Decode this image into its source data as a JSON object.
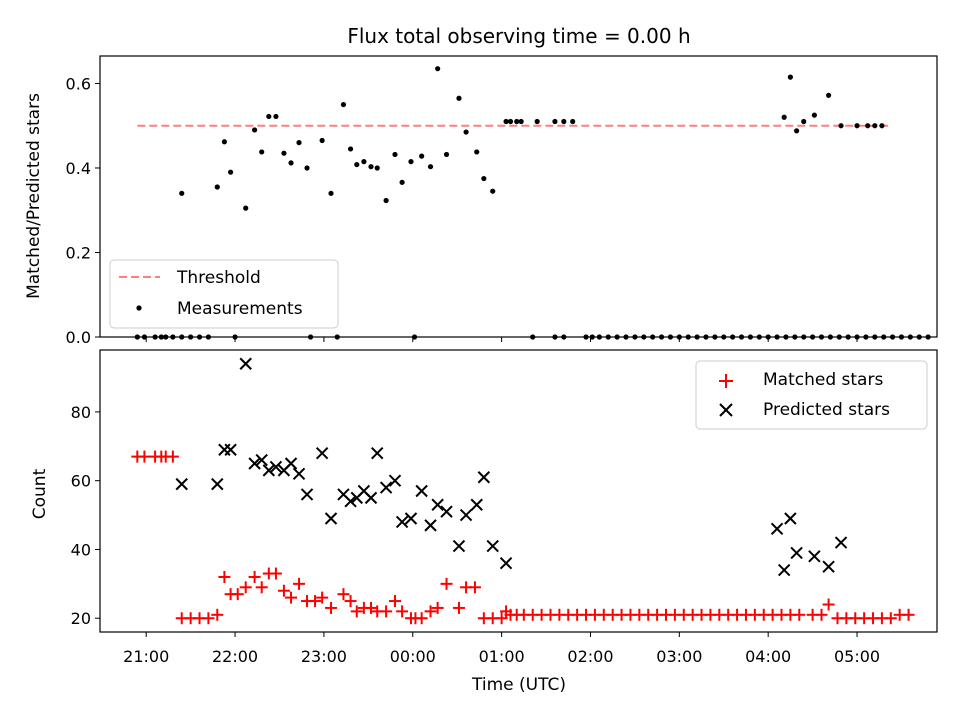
{
  "chart_data": [
    {
      "type": "scatter",
      "title": "Flux total observing time = 0.00 h",
      "xlabel": "",
      "ylabel": "Matched/Predicted stars",
      "xlim_hours_since_2100": [
        -0.52,
        8.9
      ],
      "ylim": [
        0,
        0.665
      ],
      "y_ticks": [
        "0.0",
        "0.2",
        "0.4",
        "0.6"
      ],
      "y_tick_values": [
        0,
        0.2,
        0.4,
        0.6
      ],
      "grid": false,
      "legend": {
        "position": "lower-left",
        "entries": [
          "Threshold",
          "Measurements"
        ]
      },
      "threshold": {
        "name": "Threshold",
        "value": 0.5,
        "x_start": -0.1,
        "x_end": 8.35,
        "color": "#ff7f7f",
        "style": "dashed"
      },
      "series": [
        {
          "name": "Measurements",
          "color": "#000000",
          "x": [
            -0.1,
            -0.02,
            0.1,
            0.17,
            0.22,
            0.3,
            0.4,
            0.5,
            0.6,
            0.7,
            1.0,
            1.85,
            2.15,
            3.02,
            4.35,
            4.6,
            4.7,
            0.4,
            0.8,
            0.88,
            0.95,
            1.12,
            1.22,
            1.3,
            1.38,
            1.46,
            1.55,
            1.63,
            1.72,
            1.81,
            1.98,
            2.08,
            2.22,
            2.3,
            2.37,
            2.45,
            2.53,
            2.6,
            2.7,
            2.8,
            2.88,
            2.98,
            3.1,
            3.2,
            3.28,
            3.38,
            3.52,
            3.6,
            3.72,
            3.8,
            3.9,
            4.05,
            4.1,
            4.17,
            4.22,
            4.4,
            4.6,
            4.7,
            4.8,
            4.95,
            5.02,
            5.1,
            5.2,
            5.3,
            5.4,
            5.5,
            5.6,
            5.7,
            5.8,
            5.9,
            6.0,
            6.1,
            6.2,
            6.3,
            6.4,
            6.5,
            6.6,
            6.7,
            6.8,
            6.9,
            7.0,
            7.1,
            7.2,
            7.3,
            7.4,
            7.5,
            7.6,
            7.7,
            7.8,
            7.9,
            8.0,
            8.1,
            8.2,
            8.3,
            8.4,
            8.5,
            8.6,
            8.7,
            8.8,
            7.18,
            7.25,
            7.32,
            7.4,
            7.52,
            7.68,
            7.82,
            8.0,
            8.12,
            8.2,
            8.28
          ],
          "y": [
            0,
            0,
            0,
            0,
            0,
            0,
            0,
            0,
            0,
            0,
            0,
            0,
            0,
            0,
            0,
            0,
            0,
            0.34,
            0.355,
            0.462,
            0.39,
            0.305,
            0.49,
            0.438,
            0.522,
            0.522,
            0.435,
            0.412,
            0.46,
            0.4,
            0.465,
            0.34,
            0.55,
            0.445,
            0.408,
            0.415,
            0.403,
            0.4,
            0.323,
            0.432,
            0.366,
            0.415,
            0.428,
            0.403,
            0.635,
            0.432,
            0.565,
            0.485,
            0.438,
            0.375,
            0.345,
            0.51,
            0.51,
            0.51,
            0.51,
            0.51,
            0.51,
            0.51,
            0.51,
            0,
            0,
            0,
            0,
            0,
            0,
            0,
            0,
            0,
            0,
            0,
            0,
            0,
            0,
            0,
            0,
            0,
            0,
            0,
            0,
            0,
            0,
            0,
            0,
            0,
            0,
            0,
            0,
            0,
            0,
            0,
            0,
            0,
            0,
            0,
            0,
            0,
            0,
            0,
            0,
            0.52,
            0.615,
            0.488,
            0.51,
            0.525,
            0.572,
            0.5,
            0.5,
            0.5,
            0.5,
            0.5
          ]
        }
      ]
    },
    {
      "type": "scatter",
      "title": "",
      "xlabel": "Time (UTC)",
      "ylabel": "Count",
      "xlim_hours_since_2100": [
        -0.52,
        8.9
      ],
      "ylim": [
        16,
        98
      ],
      "x_ticks": [
        "21:00",
        "22:00",
        "23:00",
        "00:00",
        "01:00",
        "02:00",
        "03:00",
        "04:00",
        "05:00"
      ],
      "x_tick_values": [
        0,
        1,
        2,
        3,
        4,
        5,
        6,
        7,
        8
      ],
      "y_ticks": [
        "20",
        "40",
        "60",
        "80"
      ],
      "y_tick_values": [
        20,
        40,
        60,
        80
      ],
      "grid": false,
      "legend": {
        "position": "top-right",
        "entries": [
          "Matched stars",
          "Predicted stars"
        ]
      },
      "series": [
        {
          "name": "Matched stars",
          "marker": "plus",
          "color": "#ff0000",
          "x": [
            -0.1,
            -0.02,
            0.1,
            0.17,
            0.22,
            0.3,
            0.4,
            0.5,
            0.6,
            0.7,
            0.8,
            0.88,
            0.95,
            1.03,
            1.12,
            1.22,
            1.3,
            1.38,
            1.46,
            1.55,
            1.63,
            1.72,
            1.81,
            1.9,
            1.98,
            2.08,
            2.22,
            2.3,
            2.37,
            2.45,
            2.53,
            2.6,
            2.7,
            2.8,
            2.88,
            2.98,
            3.03,
            3.1,
            3.2,
            3.28,
            3.38,
            3.52,
            3.6,
            3.7,
            3.8,
            3.9,
            4.0,
            4.05,
            4.1,
            4.17,
            4.25,
            4.35,
            4.45,
            4.55,
            4.65,
            4.75,
            4.85,
            4.95,
            5.05,
            5.15,
            5.25,
            5.35,
            5.45,
            5.55,
            5.65,
            5.75,
            5.85,
            5.95,
            6.05,
            6.15,
            6.25,
            6.35,
            6.45,
            6.55,
            6.65,
            6.75,
            6.85,
            6.95,
            7.05,
            7.15,
            7.25,
            7.35,
            7.5,
            7.6,
            7.68,
            7.78,
            7.88,
            7.98,
            8.08,
            8.18,
            8.28,
            8.38,
            8.48,
            8.58
          ],
          "y": [
            67,
            67,
            67,
            67,
            67,
            67,
            20,
            20,
            20,
            20,
            21,
            32,
            27,
            27,
            29,
            32,
            29,
            33,
            33,
            28,
            26,
            30,
            25,
            25,
            26,
            23,
            27,
            25,
            22,
            23,
            23,
            22,
            22,
            25,
            22,
            20,
            20,
            20,
            22,
            23,
            30,
            23,
            29,
            29,
            20,
            20,
            20,
            22,
            21,
            21,
            21,
            21,
            21,
            21,
            21,
            21,
            21,
            21,
            21,
            21,
            21,
            21,
            21,
            21,
            21,
            21,
            21,
            21,
            21,
            21,
            21,
            21,
            21,
            21,
            21,
            21,
            21,
            21,
            21,
            21,
            21,
            21,
            21,
            21,
            24,
            20,
            20,
            20,
            20,
            20,
            20,
            20,
            21,
            21
          ]
        },
        {
          "name": "Predicted stars",
          "marker": "x",
          "color": "#000000",
          "x": [
            0.4,
            0.8,
            0.88,
            0.95,
            1.12,
            1.22,
            1.3,
            1.38,
            1.46,
            1.55,
            1.63,
            1.72,
            1.81,
            1.98,
            2.08,
            2.22,
            2.3,
            2.37,
            2.45,
            2.53,
            2.6,
            2.7,
            2.8,
            2.88,
            2.98,
            3.1,
            3.2,
            3.28,
            3.38,
            3.52,
            3.6,
            3.72,
            3.8,
            3.9,
            4.05,
            7.1,
            7.18,
            7.25,
            7.32,
            7.52,
            7.68,
            7.82
          ],
          "y": [
            59,
            59,
            69,
            69,
            94,
            65,
            66,
            63,
            64,
            63,
            65,
            62,
            56,
            68,
            49,
            56,
            54,
            55,
            57,
            55,
            68,
            58,
            60,
            48,
            49,
            57,
            47,
            53,
            51,
            41,
            50,
            53,
            61,
            41,
            36,
            46,
            34,
            49,
            39,
            38,
            35,
            42
          ]
        }
      ]
    }
  ]
}
